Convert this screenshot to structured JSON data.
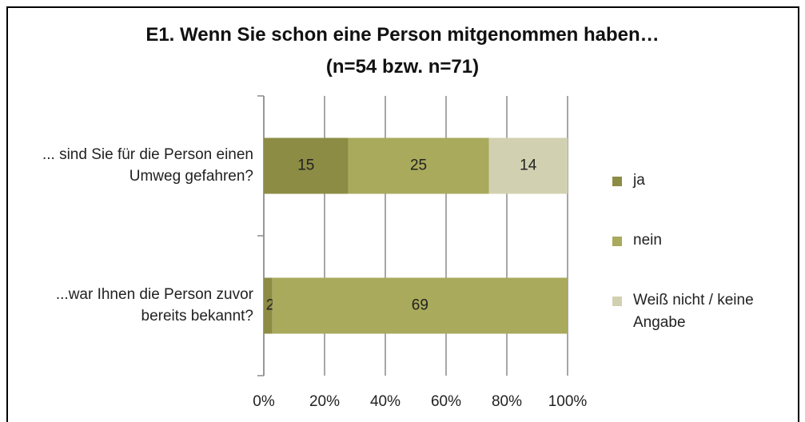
{
  "chart_data": {
    "type": "bar",
    "orientation": "horizontal",
    "stacking": "percent",
    "title": "E1. Wenn Sie schon eine Person mitgenommen haben…",
    "subtitle": "(n=54 bzw. n=71)",
    "categories": [
      "... sind Sie für die Person einen Umweg gefahren?",
      "...war Ihnen die Person zuvor bereits bekannt?"
    ],
    "series": [
      {
        "name": "ja",
        "color": "#8c8c45",
        "values": [
          15,
          2
        ]
      },
      {
        "name": "nein",
        "color": "#a9aa5b",
        "values": [
          25,
          69
        ]
      },
      {
        "name": "Weiß nicht / keine Angabe",
        "color": "#d1d1b1",
        "values": [
          14,
          null
        ]
      }
    ],
    "xlim": [
      0,
      100
    ],
    "xticks": [
      {
        "value": 0,
        "label": "0%"
      },
      {
        "value": 20,
        "label": "20%"
      },
      {
        "value": 40,
        "label": "40%"
      },
      {
        "value": 60,
        "label": "60%"
      },
      {
        "value": 80,
        "label": "80%"
      },
      {
        "value": 100,
        "label": "100%"
      }
    ],
    "grid": true,
    "legend": "right"
  }
}
